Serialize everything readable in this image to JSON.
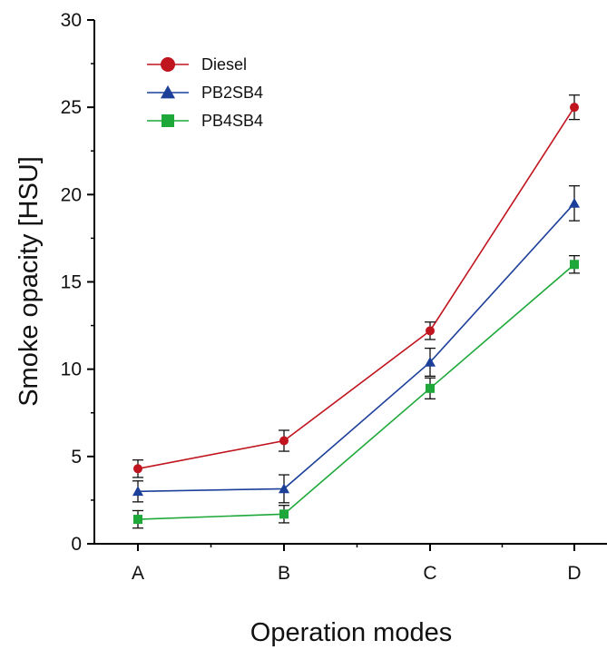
{
  "chart_data": {
    "type": "line",
    "title": "",
    "xlabel": "Operation modes",
    "ylabel": "Smoke opacity [HSU]",
    "categories": [
      "A",
      "B",
      "C",
      "D"
    ],
    "ylim": [
      0,
      30
    ],
    "yticks": [
      0,
      5,
      10,
      15,
      20,
      25,
      30
    ],
    "grid": false,
    "legend_position": "top-left",
    "series": [
      {
        "name": "Diesel",
        "color": "#c0141e",
        "marker": "circle",
        "values": [
          4.3,
          5.9,
          12.2,
          25.0
        ],
        "errors": [
          0.5,
          0.6,
          0.5,
          0.7
        ]
      },
      {
        "name": "PB2SB4",
        "color": "#1c3f9a",
        "marker": "triangle",
        "values": [
          3.0,
          3.15,
          10.4,
          19.5
        ],
        "errors": [
          0.6,
          0.8,
          0.8,
          1.0
        ]
      },
      {
        "name": "PB4SB4",
        "color": "#1ea83a",
        "marker": "square",
        "values": [
          1.4,
          1.7,
          8.9,
          16.0
        ],
        "errors": [
          0.5,
          0.5,
          0.6,
          0.5
        ]
      }
    ]
  }
}
